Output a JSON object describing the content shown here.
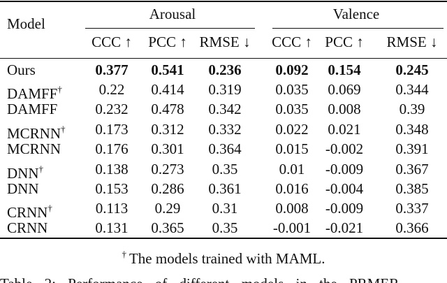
{
  "table": {
    "header": {
      "model": "Model",
      "groups": [
        {
          "title": "Arousal",
          "columns": [
            "CCC ↑",
            "PCC ↑",
            "RMSE ↓"
          ]
        },
        {
          "title": "Valence",
          "columns": [
            "CCC ↑",
            "PCC ↑",
            "RMSE ↓"
          ]
        }
      ]
    },
    "rows": [
      {
        "name": "Ours",
        "cells": [
          "0.377",
          "0.541",
          "0.236",
          "0.092",
          "0.154",
          "0.245"
        ]
      },
      {
        "name": "DAMFF",
        "mark": "†",
        "cells": [
          "0.22",
          "0.414",
          "0.319",
          "0.035",
          "0.069",
          "0.344"
        ]
      },
      {
        "name": "DAMFF",
        "cells": [
          "0.232",
          "0.478",
          "0.342",
          "0.035",
          "0.008",
          "0.39"
        ]
      },
      {
        "name": "MCRNN",
        "mark": "†",
        "cells": [
          "0.173",
          "0.312",
          "0.332",
          "0.022",
          "0.021",
          "0.348"
        ]
      },
      {
        "name": "MCRNN",
        "cells": [
          "0.176",
          "0.301",
          "0.364",
          "0.015",
          "-0.002",
          "0.391"
        ]
      },
      {
        "name": "DNN",
        "mark": "†",
        "cells": [
          "0.138",
          "0.273",
          "0.35",
          "0.01",
          "-0.009",
          "0.367"
        ]
      },
      {
        "name": "DNN",
        "cells": [
          "0.153",
          "0.286",
          "0.361",
          "0.016",
          "-0.004",
          "0.385"
        ]
      },
      {
        "name": "CRNN",
        "mark": "†",
        "cells": [
          "0.113",
          "0.29",
          "0.31",
          "0.008",
          "-0.009",
          "0.337"
        ]
      },
      {
        "name": "CRNN",
        "cells": [
          "0.131",
          "0.365",
          "0.35",
          "-0.001",
          "-0.021",
          "0.366"
        ]
      }
    ],
    "footnote": {
      "mark": "†",
      "text": "The models trained with MAML."
    }
  },
  "caption": "Table 2: Performance of different models in the PRMER"
}
